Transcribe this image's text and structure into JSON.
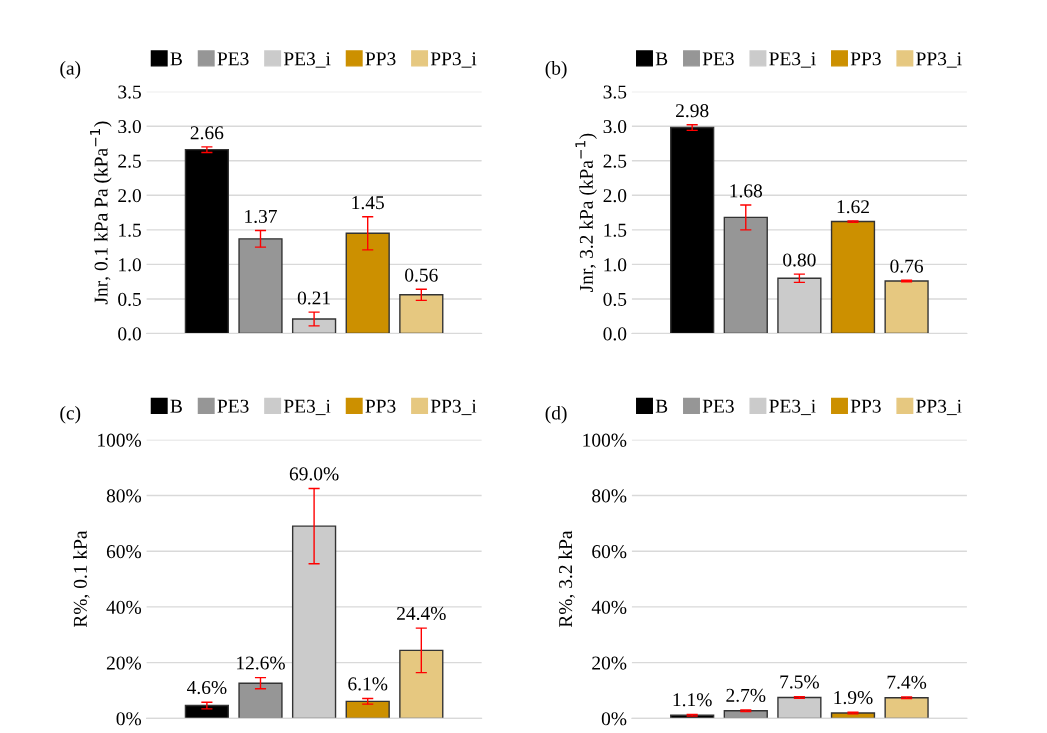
{
  "chart_data": [
    {
      "type": "bar",
      "title": "(a)",
      "ylabel": "Jnr, 0.1 kPa Pa (kPa$^{−1}$)",
      "categories": [
        null
      ],
      "ylim": [
        0,
        3.5
      ],
      "yticks": [
        {
          "value": 0,
          "label": "0.0"
        },
        {
          "value": 0.5,
          "label": "0.5"
        },
        {
          "value": 1,
          "label": "1.0"
        },
        {
          "value": 1.5,
          "label": "1.5"
        },
        {
          "value": 2,
          "label": "2.0"
        },
        {
          "value": 2.5,
          "label": "2.5"
        },
        {
          "value": 3,
          "label": "3.0"
        },
        {
          "value": 3.5,
          "label": "3.5"
        }
      ],
      "grid": "y",
      "legend": "top",
      "tick_labels": "y",
      "series": [
        {
          "name": "B",
          "color": "#000000",
          "values": [
            2.66
          ],
          "errors": [
            0.04
          ],
          "value_labels": [
            "2.66"
          ]
        },
        {
          "name": "PE3",
          "color": "#969696",
          "values": [
            1.37
          ],
          "errors": [
            0.12
          ],
          "value_labels": [
            "1.37"
          ]
        },
        {
          "name": "PE3_i",
          "color": "#cbcbcb",
          "values": [
            0.21
          ],
          "errors": [
            0.1
          ],
          "value_labels": [
            "0.21"
          ]
        },
        {
          "name": "PP3",
          "color": "#cc9000",
          "values": [
            1.45
          ],
          "errors": [
            0.24
          ],
          "value_labels": [
            "1.45"
          ]
        },
        {
          "name": "PP3_i",
          "color": "#e6c880",
          "values": [
            0.56
          ],
          "errors": [
            0.08
          ],
          "value_labels": [
            "0.56"
          ]
        }
      ]
    },
    {
      "type": "bar",
      "title": "(b)",
      "ylabel": "Jnr, 3.2 kPa (kPa$^{−1}$)",
      "categories": [
        null
      ],
      "ylim": [
        0,
        3.5
      ],
      "yticks": [
        {
          "value": 0,
          "label": "0.0"
        },
        {
          "value": 0.5,
          "label": "0.5"
        },
        {
          "value": 1,
          "label": "1.0"
        },
        {
          "value": 1.5,
          "label": "1.5"
        },
        {
          "value": 2,
          "label": "2.0"
        },
        {
          "value": 2.5,
          "label": "2.5"
        },
        {
          "value": 3,
          "label": "3.0"
        },
        {
          "value": 3.5,
          "label": "3.5"
        }
      ],
      "grid": "y",
      "legend": "top",
      "tick_labels": "y",
      "series": [
        {
          "name": "B",
          "color": "#000000",
          "values": [
            2.98
          ],
          "errors": [
            0.04
          ],
          "value_labels": [
            "2.98"
          ]
        },
        {
          "name": "PE3",
          "color": "#969696",
          "values": [
            1.68
          ],
          "errors": [
            0.18
          ],
          "value_labels": [
            "1.68"
          ]
        },
        {
          "name": "PE3_i",
          "color": "#cbcbcb",
          "values": [
            0.8
          ],
          "errors": [
            0.06
          ],
          "value_labels": [
            "0.80"
          ]
        },
        {
          "name": "PP3",
          "color": "#cc9000",
          "values": [
            1.62
          ],
          "errors": [
            0.01
          ],
          "value_labels": [
            "1.62"
          ]
        },
        {
          "name": "PP3_i",
          "color": "#e6c880",
          "values": [
            0.76
          ],
          "errors": [
            0.01
          ],
          "value_labels": [
            "0.76"
          ]
        }
      ]
    },
    {
      "type": "bar",
      "title": "(c)",
      "ylabel": "R%, 0.1 kPa",
      "categories": [
        null
      ],
      "ylim": [
        0,
        100
      ],
      "yticks": [
        {
          "value": 0,
          "label": "0%"
        },
        {
          "value": 20,
          "label": "20%"
        },
        {
          "value": 40,
          "label": "40%"
        },
        {
          "value": 60,
          "label": "60%"
        },
        {
          "value": 80,
          "label": "80%"
        },
        {
          "value": 100,
          "label": "100%"
        }
      ],
      "grid": "y",
      "legend": "top",
      "tick_labels": "y",
      "series": [
        {
          "name": "B",
          "color": "#000000",
          "values": [
            4.6
          ],
          "errors": [
            1.2
          ],
          "value_labels": [
            "4.6%"
          ]
        },
        {
          "name": "PE3",
          "color": "#969696",
          "values": [
            12.6
          ],
          "errors": [
            2
          ],
          "value_labels": [
            "12.6%"
          ]
        },
        {
          "name": "PE3_i",
          "color": "#cbcbcb",
          "values": [
            69.0
          ],
          "errors": [
            13.5
          ],
          "value_labels": [
            "69.0%"
          ]
        },
        {
          "name": "PP3",
          "color": "#cc9000",
          "values": [
            6.1
          ],
          "errors": [
            1
          ],
          "value_labels": [
            "6.1%"
          ]
        },
        {
          "name": "PP3_i",
          "color": "#e6c880",
          "values": [
            24.4
          ],
          "errors": [
            8
          ],
          "value_labels": [
            "24.4%"
          ]
        }
      ]
    },
    {
      "type": "bar",
      "title": "(d)",
      "ylabel": "R%, 3.2 kPa",
      "categories": [
        null
      ],
      "ylim": [
        0,
        100
      ],
      "yticks": [
        {
          "value": 0,
          "label": "0%"
        },
        {
          "value": 20,
          "label": "20%"
        },
        {
          "value": 40,
          "label": "40%"
        },
        {
          "value": 60,
          "label": "60%"
        },
        {
          "value": 80,
          "label": "80%"
        },
        {
          "value": 100,
          "label": "100%"
        }
      ],
      "grid": "y",
      "legend": "top",
      "tick_labels": "y",
      "series": [
        {
          "name": "B",
          "color": "#000000",
          "values": [
            1.1
          ],
          "errors": [
            0.3
          ],
          "value_labels": [
            "1.1%"
          ]
        },
        {
          "name": "PE3",
          "color": "#969696",
          "values": [
            2.7
          ],
          "errors": [
            0.3
          ],
          "value_labels": [
            "2.7%"
          ]
        },
        {
          "name": "PE3_i",
          "color": "#cbcbcb",
          "values": [
            7.5
          ],
          "errors": [
            0.3
          ],
          "value_labels": [
            "7.5%"
          ]
        },
        {
          "name": "PP3",
          "color": "#cc9000",
          "values": [
            1.9
          ],
          "errors": [
            0.3
          ],
          "value_labels": [
            "1.9%"
          ]
        },
        {
          "name": "PP3_i",
          "color": "#e6c880",
          "values": [
            7.4
          ],
          "errors": [
            0.3
          ],
          "value_labels": [
            "7.4%"
          ]
        }
      ]
    }
  ]
}
